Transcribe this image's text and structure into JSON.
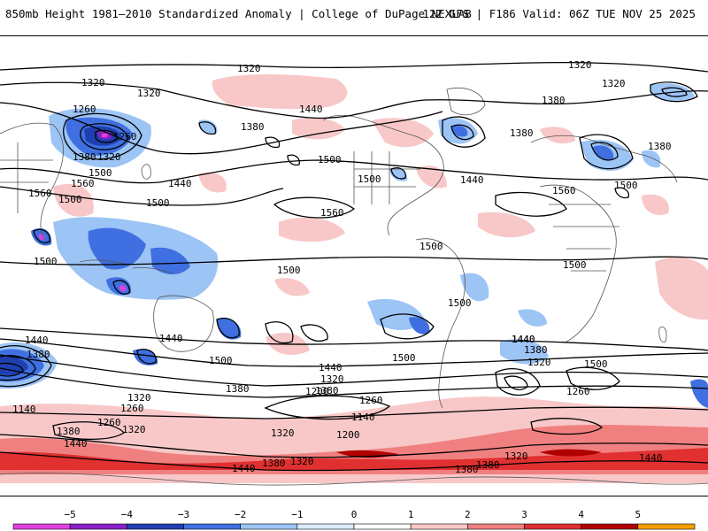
{
  "header": {
    "title_left": "850mb Height 1981–2010 Standardized Anomaly | College of DuPage NEXLAB",
    "title_right": "12Z GFS | F186 Valid: 06Z TUE NOV 25 2025"
  },
  "colorbar": {
    "ticks": [
      "−5",
      "−4",
      "−3",
      "−2",
      "−1",
      "0",
      "1",
      "2",
      "3",
      "4",
      "5"
    ],
    "colors": [
      "#e040e0",
      "#8a1fc8",
      "#1f3fb0",
      "#3f6fe0",
      "#9cc4f5",
      "#dceafc",
      "#ffffff",
      "#f8c8c8",
      "#f08080",
      "#e03030",
      "#b00000",
      "#f5a000"
    ]
  },
  "map": {
    "contour_labels": [
      "1320",
      "1320",
      "1320",
      "1320",
      "1440",
      "1380",
      "1380",
      "1380",
      "1380",
      "1320",
      "1260",
      "1260",
      "1380",
      "1320",
      "1500",
      "1560",
      "1560",
      "1500",
      "1440",
      "1500",
      "1500",
      "1500",
      "1560",
      "1560",
      "1500",
      "1500",
      "1500",
      "1500",
      "1500",
      "1440",
      "1380",
      "1320",
      "1380",
      "1440",
      "1440",
      "1440",
      "1320",
      "1380",
      "1320",
      "1200",
      "1260",
      "1140",
      "1260",
      "1380",
      "1320",
      "1200",
      "1140",
      "1500",
      "1500",
      "1380",
      "1440",
      "1320",
      "1260",
      "1260",
      "1320",
      "1380",
      "1440",
      "1380",
      "1320",
      "1440",
      "1440",
      "1380",
      "1500",
      "1440",
      "1500"
    ]
  }
}
